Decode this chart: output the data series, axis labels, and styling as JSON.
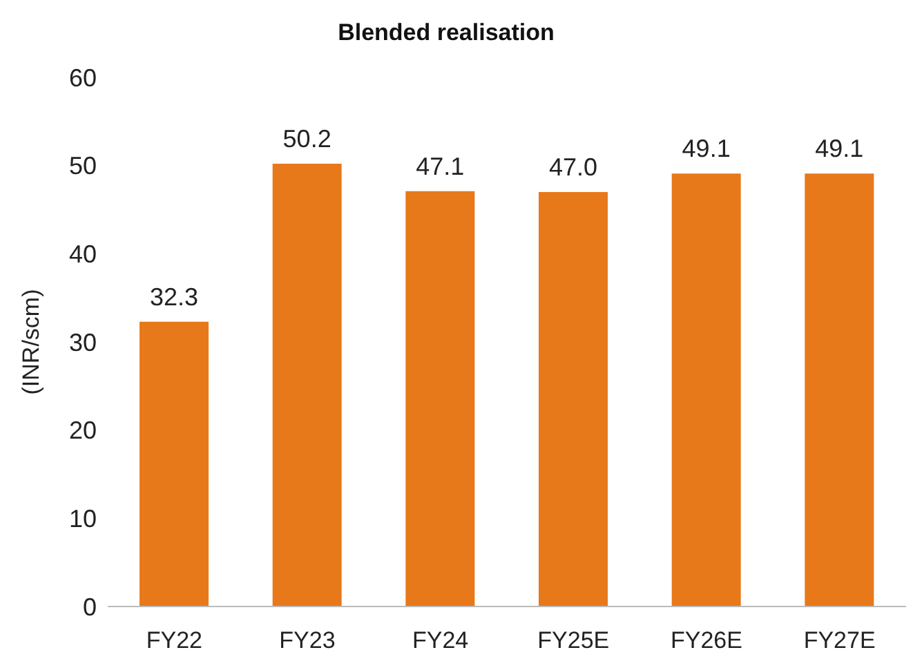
{
  "chart_data": {
    "type": "bar",
    "title": "Blended realisation",
    "ylabel": "(INR/scm)",
    "categories": [
      "FY22",
      "FY23",
      "FY24",
      "FY25E",
      "FY26E",
      "FY27E"
    ],
    "values": [
      32.3,
      50.2,
      47.1,
      47.0,
      49.1,
      49.1
    ],
    "value_labels": [
      "32.3",
      "50.2",
      "47.1",
      "47.0",
      "49.1",
      "49.1"
    ],
    "color": "#e8791a",
    "ylim": [
      0,
      60
    ],
    "yticks": [
      0,
      10,
      20,
      30,
      40,
      50,
      60
    ],
    "grid": false,
    "legend": false
  }
}
